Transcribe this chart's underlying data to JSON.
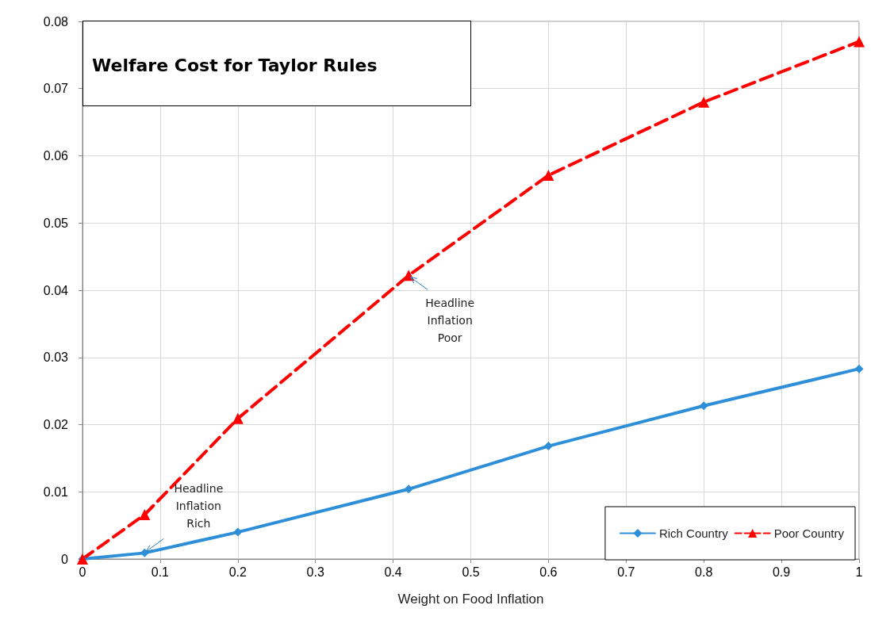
{
  "chart_data": {
    "type": "line",
    "title": "Welfare Cost for Taylor Rules",
    "xlabel": "Weight on Food Inflation",
    "x": [
      0,
      0.08,
      0.2,
      0.42,
      0.6,
      0.8,
      1
    ],
    "series": [
      {
        "name": "Rich Country",
        "color": "#2e8fd8",
        "marker": "diamond",
        "line_style": "solid",
        "values": [
          0,
          0.0009,
          0.004,
          0.0104,
          0.0168,
          0.0228,
          0.0283
        ]
      },
      {
        "name": "Poor Country",
        "color": "#ff0000",
        "marker": "triangle",
        "line_style": "dashed",
        "values": [
          0,
          0.0066,
          0.0209,
          0.0422,
          0.0571,
          0.068,
          0.077
        ]
      }
    ],
    "xlim": [
      0,
      1
    ],
    "xticks": [
      0,
      0.1,
      0.2,
      0.3,
      0.4,
      0.5,
      0.6,
      0.7,
      0.8,
      0.9,
      1
    ],
    "ylim": [
      0,
      0.08
    ],
    "yticks": [
      0,
      0.01,
      0.02,
      0.03,
      0.04,
      0.05,
      0.06,
      0.07,
      0.08
    ],
    "grid": true,
    "legend": "bottom right",
    "annotations": [
      {
        "text": "Headline Inflation Rich",
        "x": 0.08,
        "y": 0.0009
      },
      {
        "text": "Headline Inflation Poor",
        "x": 0.42,
        "y": 0.0422
      }
    ]
  }
}
